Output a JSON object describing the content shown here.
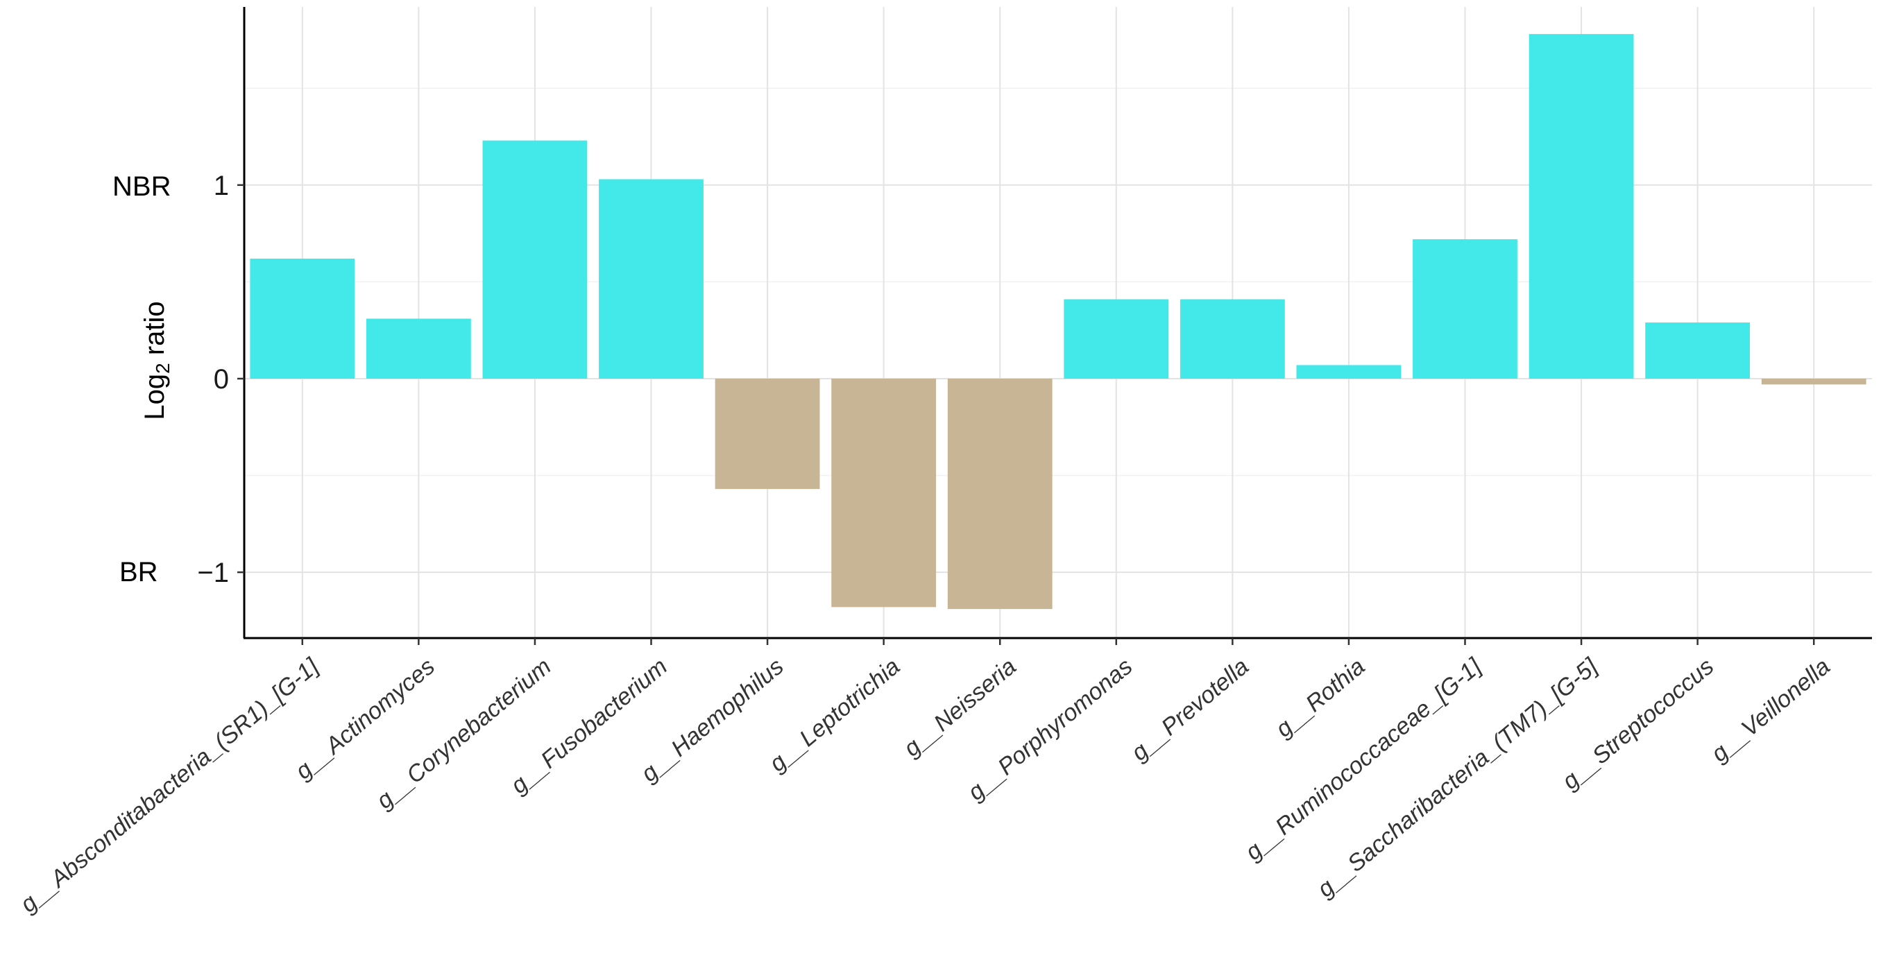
{
  "chart_data": {
    "type": "bar",
    "title": "",
    "xlabel": "",
    "ylabel": {
      "main": "Log",
      "subscript": "2",
      "rest": " ratio"
    },
    "ylim": [
      -1.34,
      1.92
    ],
    "yticks": [
      -1,
      0,
      1
    ],
    "ytick_labels": [
      "−1",
      "0",
      "1"
    ],
    "group_labels": {
      "positive": "NBR",
      "negative": "BR"
    },
    "categories": [
      "g__Absconditabacteria_(SR1)_[G-1]",
      "g__Actinomyces",
      "g__Corynebacterium",
      "g__Fusobacterium",
      "g__Haemophilus",
      "g__Leptotrichia",
      "g__Neisseria",
      "g__Porphyromonas",
      "g__Prevotella",
      "g__Rothia",
      "g__Ruminococcaceae_[G-1]",
      "g__Saccharibacteria_(TM7)_[G-5]",
      "g__Streptococcus",
      "g__Veillonella"
    ],
    "values": [
      0.62,
      0.31,
      1.23,
      1.03,
      -0.57,
      -1.18,
      -1.19,
      0.41,
      0.41,
      0.07,
      0.72,
      1.78,
      0.29,
      -0.03
    ],
    "colors": {
      "positive": "#43E8E8",
      "negative": "#C8B596"
    },
    "grid": true
  }
}
